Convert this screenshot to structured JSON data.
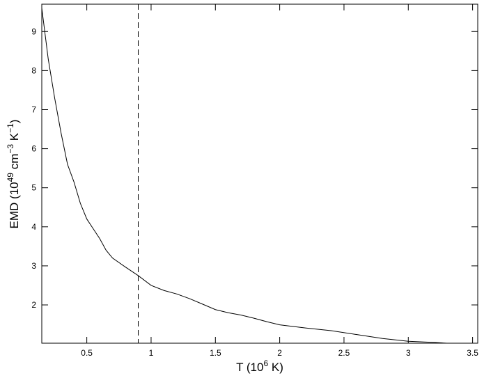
{
  "chart_data": {
    "type": "line",
    "xlabel": [
      {
        "text": "T (10"
      },
      {
        "text": "6",
        "sup": true
      },
      {
        "text": " K)"
      }
    ],
    "ylabel": [
      {
        "text": "EMD (10"
      },
      {
        "text": "49",
        "sup": true
      },
      {
        "text": " cm"
      },
      {
        "text": "−3",
        "sup": true
      },
      {
        "text": " K"
      },
      {
        "text": "−1",
        "sup": true
      },
      {
        "text": ")"
      }
    ],
    "x": [
      0.15,
      0.2,
      0.25,
      0.3,
      0.35,
      0.4,
      0.45,
      0.5,
      0.55,
      0.6,
      0.65,
      0.7,
      0.8,
      0.9,
      1.0,
      1.1,
      1.2,
      1.3,
      1.4,
      1.5,
      1.6,
      1.7,
      1.8,
      1.9,
      2.0,
      2.2,
      2.4,
      2.6,
      2.8,
      3.0,
      3.2,
      3.3
    ],
    "values": [
      9.6,
      8.3,
      7.3,
      6.4,
      5.6,
      5.15,
      4.6,
      4.2,
      3.95,
      3.7,
      3.4,
      3.2,
      2.97,
      2.75,
      2.5,
      2.37,
      2.28,
      2.16,
      2.02,
      1.88,
      1.8,
      1.74,
      1.66,
      1.57,
      1.49,
      1.41,
      1.34,
      1.24,
      1.14,
      1.07,
      1.04,
      1.02
    ],
    "color": "#000000",
    "vline": 0.9,
    "xlim": [
      0.15,
      3.54
    ],
    "xticks": [
      0.5,
      1,
      1.5,
      2,
      2.5,
      3,
      3.5
    ],
    "ylim": [
      1.02,
      9.7
    ],
    "yticks": [
      2,
      3,
      4,
      5,
      6,
      7,
      8,
      9
    ]
  }
}
